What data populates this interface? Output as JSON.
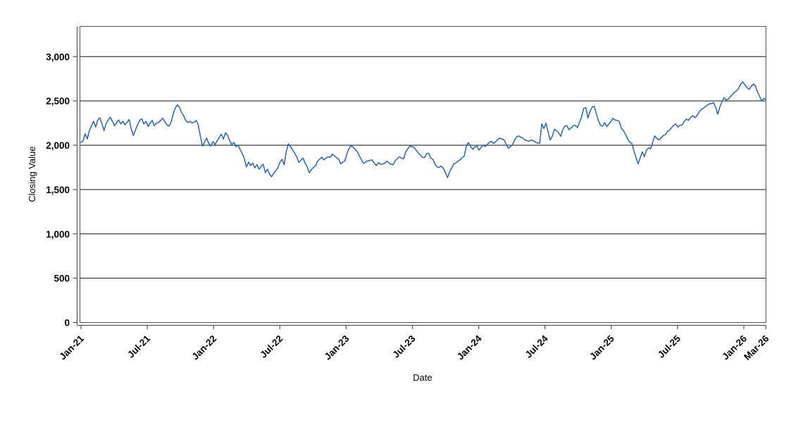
{
  "figure": {
    "background_color": "#ffffff",
    "plot_border_color": "#545454",
    "axis_line_color": "#545454",
    "gridline_color": "#111111",
    "tick_label_color": "#000000"
  },
  "chart_data": {
    "type": "line",
    "title": "",
    "xlabel": "Date",
    "ylabel": "Closing Value",
    "x_start_label": "Jan-21",
    "x_end_label": "Mar-26",
    "x_months_span": 62,
    "x_tick_labels": [
      "Jan-21",
      "Jul-21",
      "Jan-22",
      "Jul-22",
      "Jan-23",
      "Jul-23",
      "Jan-24",
      "Jul-24",
      "Jan-25",
      "Jul-25",
      "Jan-26",
      "Mar-26"
    ],
    "x_tick_month_offsets": [
      0,
      6,
      12,
      18,
      24,
      30,
      36,
      42,
      48,
      54,
      60,
      62
    ],
    "y_ticks": [
      0,
      500,
      1000,
      1500,
      2000,
      2500,
      3000
    ],
    "y_tick_labels": [
      "0",
      "500",
      "1,000",
      "1,500",
      "2,000",
      "2,500",
      "3,000"
    ],
    "ylim": [
      0,
      3340
    ],
    "grid": "horizontal",
    "legend": "none",
    "series": [
      {
        "name": "Closing Value",
        "color": "#2c63ad",
        "values": [
          2030,
          2050,
          2130,
          2070,
          2165,
          2220,
          2270,
          2205,
          2285,
          2310,
          2245,
          2165,
          2245,
          2285,
          2315,
          2270,
          2220,
          2255,
          2285,
          2240,
          2270,
          2230,
          2260,
          2290,
          2180,
          2110,
          2170,
          2230,
          2280,
          2300,
          2240,
          2270,
          2210,
          2250,
          2280,
          2220,
          2250,
          2255,
          2280,
          2305,
          2270,
          2230,
          2215,
          2260,
          2350,
          2420,
          2455,
          2430,
          2370,
          2335,
          2280,
          2255,
          2270,
          2250,
          2260,
          2280,
          2230,
          2100,
          1990,
          2040,
          2080,
          2020,
          1990,
          2040,
          2010,
          2050,
          2090,
          2125,
          2070,
          2140,
          2110,
          2050,
          2010,
          2030,
          1985,
          2000,
          1950,
          1905,
          1850,
          1755,
          1810,
          1770,
          1800,
          1745,
          1780,
          1730,
          1760,
          1785,
          1690,
          1730,
          1675,
          1645,
          1685,
          1715,
          1745,
          1810,
          1840,
          1780,
          1930,
          2015,
          1985,
          1950,
          1910,
          1870,
          1805,
          1830,
          1855,
          1800,
          1755,
          1690,
          1725,
          1750,
          1770,
          1820,
          1845,
          1865,
          1835,
          1855,
          1870,
          1865,
          1900,
          1880,
          1860,
          1845,
          1790,
          1810,
          1825,
          1910,
          1965,
          1995,
          1975,
          1950,
          1925,
          1875,
          1830,
          1795,
          1815,
          1825,
          1830,
          1835,
          1800,
          1770,
          1805,
          1785,
          1790,
          1795,
          1820,
          1800,
          1785,
          1780,
          1825,
          1850,
          1870,
          1855,
          1845,
          1920,
          1960,
          1990,
          1985,
          1975,
          1945,
          1915,
          1890,
          1865,
          1860,
          1905,
          1910,
          1855,
          1840,
          1785,
          1755,
          1750,
          1765,
          1740,
          1690,
          1635,
          1700,
          1745,
          1790,
          1800,
          1820,
          1835,
          1860,
          1880,
          2000,
          2030,
          1985,
          1955,
          1980,
          1990,
          1945,
          1975,
          2000,
          1985,
          2010,
          2035,
          2045,
          2020,
          2040,
          2065,
          2080,
          2070,
          2060,
          2010,
          1965,
          1985,
          2005,
          2060,
          2095,
          2105,
          2090,
          2080,
          2060,
          2050,
          2045,
          2060,
          2050,
          2035,
          2025,
          2020,
          2240,
          2190,
          2250,
          2150,
          2060,
          2100,
          2180,
          2165,
          2140,
          2100,
          2175,
          2215,
          2220,
          2175,
          2195,
          2220,
          2225,
          2200,
          2255,
          2320,
          2415,
          2425,
          2305,
          2380,
          2430,
          2440,
          2360,
          2280,
          2225,
          2215,
          2255,
          2210,
          2240,
          2265,
          2305,
          2285,
          2280,
          2270,
          2190,
          2165,
          2120,
          2070,
          2035,
          2020,
          1935,
          1860,
          1790,
          1860,
          1925,
          1870,
          1945,
          1970,
          1960,
          2040,
          2105,
          2075,
          2060,
          2085,
          2110,
          2120,
          2155,
          2170,
          2200,
          2225,
          2240,
          2205,
          2225,
          2230,
          2270,
          2295,
          2280,
          2310,
          2335,
          2310,
          2330,
          2370,
          2400,
          2415,
          2435,
          2450,
          2465,
          2470,
          2480,
          2430,
          2350,
          2430,
          2490,
          2535,
          2510,
          2520,
          2545,
          2575,
          2600,
          2615,
          2640,
          2690,
          2715,
          2680,
          2650,
          2630,
          2665,
          2690,
          2670,
          2600,
          2550,
          2500,
          2530,
          2515
        ]
      }
    ]
  }
}
